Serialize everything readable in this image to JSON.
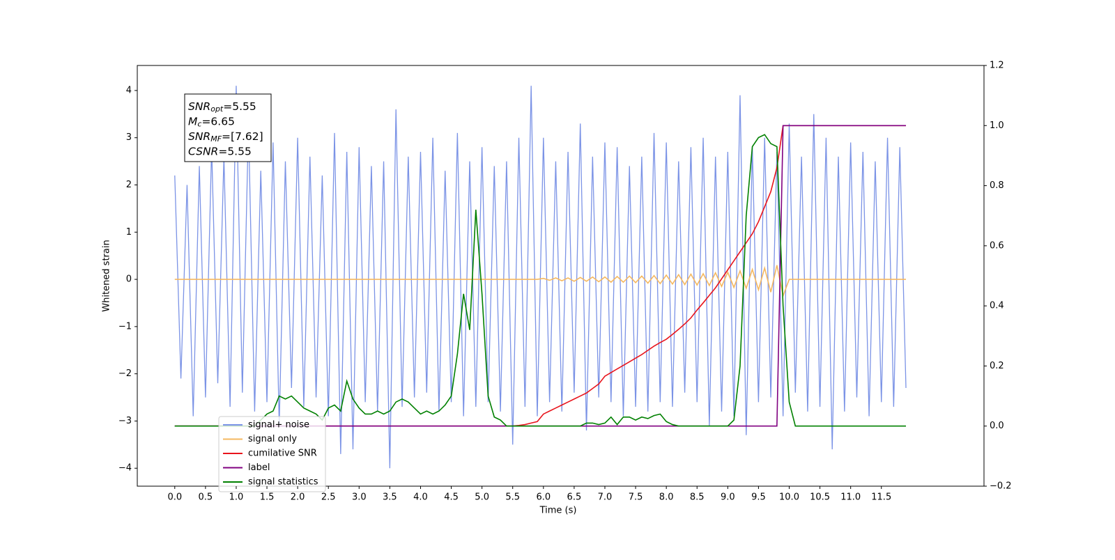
{
  "chart_data": {
    "type": "line",
    "xlabel": "Time (s)",
    "ylabel": "Whitened strain",
    "xlim": [
      -0.61,
      13.17
    ],
    "ylim": [
      -4.38,
      4.53
    ],
    "y2lim": [
      -0.2,
      1.2
    ],
    "xticks": [
      {
        "value": 0,
        "label": "0.0"
      },
      0.5,
      {
        "value": 1,
        "label": "1.0"
      },
      1.5,
      {
        "value": 2,
        "label": "2.0"
      },
      2.5,
      {
        "value": 3,
        "label": "3.0"
      },
      3.5,
      {
        "value": 4,
        "label": "4.0"
      },
      4.5,
      {
        "value": 5,
        "label": "5.0"
      },
      5.5,
      {
        "value": 6,
        "label": "6.0"
      },
      6.5,
      {
        "value": 7,
        "label": "7.0"
      },
      7.5,
      {
        "value": 8,
        "label": "8.0"
      },
      8.5,
      {
        "value": 9,
        "label": "9.0"
      },
      9.5,
      {
        "value": 10,
        "label": "10.0"
      },
      10.5,
      {
        "value": 11,
        "label": "11.0"
      },
      11.5
    ],
    "yticks": [
      {
        "value": -4,
        "label": "−4"
      },
      {
        "value": -3,
        "label": "−3"
      },
      {
        "value": -2,
        "label": "−2"
      },
      {
        "value": -1,
        "label": "−1"
      },
      0,
      1,
      2,
      3,
      4
    ],
    "y2ticks": [
      {
        "value": -0.2,
        "label": "−0.2"
      },
      {
        "value": 0,
        "label": "0.0"
      },
      0.2,
      0.4,
      0.6,
      0.8,
      {
        "value": 1,
        "label": "1.0"
      },
      1.2
    ],
    "legend": "lower left",
    "annotation": [
      {
        "symbol": "SNR",
        "subscript": "opt",
        "text": "=5.55"
      },
      {
        "symbol": "M",
        "subscript": "c",
        "text": "=6.65"
      },
      {
        "symbol": "SNR",
        "subscript": "MF",
        "text": "=[7.62]"
      },
      {
        "symbol": "CSNR",
        "subscript": "",
        "text": "=5.55"
      }
    ],
    "x": [
      0.0,
      0.1,
      0.2,
      0.3,
      0.4,
      0.5,
      0.6,
      0.7,
      0.8,
      0.9,
      1.0,
      1.1,
      1.2,
      1.3,
      1.4,
      1.5,
      1.6,
      1.7,
      1.8,
      1.9,
      2.0,
      2.1,
      2.2,
      2.3,
      2.4,
      2.5,
      2.6,
      2.7,
      2.8,
      2.9,
      3.0,
      3.1,
      3.2,
      3.3,
      3.4,
      3.5,
      3.6,
      3.7,
      3.8,
      3.9,
      4.0,
      4.1,
      4.2,
      4.3,
      4.4,
      4.5,
      4.6,
      4.7,
      4.8,
      4.9,
      5.0,
      5.1,
      5.2,
      5.3,
      5.4,
      5.5,
      5.6,
      5.7,
      5.8,
      5.9,
      6.0,
      6.1,
      6.2,
      6.3,
      6.4,
      6.5,
      6.6,
      6.7,
      6.8,
      6.9,
      7.0,
      7.1,
      7.2,
      7.3,
      7.4,
      7.5,
      7.6,
      7.7,
      7.8,
      7.9,
      8.0,
      8.1,
      8.2,
      8.3,
      8.4,
      8.5,
      8.6,
      8.7,
      8.8,
      8.9,
      9.0,
      9.1,
      9.2,
      9.3,
      9.4,
      9.5,
      9.6,
      9.7,
      9.8,
      9.9,
      10.0,
      10.1,
      10.2,
      10.3,
      10.4,
      10.5,
      10.6,
      10.7,
      10.8,
      10.9,
      11.0,
      11.1,
      11.2,
      11.3,
      11.4,
      11.5,
      11.6,
      11.7,
      11.8,
      11.9
    ],
    "series": [
      {
        "name": "signal+ noise",
        "color": "#7b93e6",
        "axis": "y",
        "values": [
          2.2,
          -2.1,
          2.0,
          -2.9,
          2.4,
          -2.5,
          2.8,
          -2.2,
          2.6,
          -2.7,
          4.1,
          -2.4,
          3.3,
          -2.8,
          2.3,
          -2.6,
          2.9,
          -3.1,
          2.5,
          -2.3,
          3.0,
          -2.7,
          2.6,
          -2.5,
          2.2,
          -2.9,
          3.1,
          -3.7,
          2.7,
          -3.6,
          2.8,
          -2.6,
          2.4,
          -2.8,
          2.5,
          -4.0,
          3.6,
          -2.7,
          2.6,
          -2.5,
          2.7,
          -2.4,
          3.0,
          -2.8,
          2.3,
          -2.6,
          3.1,
          -2.9,
          2.5,
          -2.7,
          2.8,
          -2.6,
          2.4,
          -2.8,
          2.5,
          -3.5,
          3.0,
          -2.7,
          4.1,
          -2.9,
          3.0,
          -2.6,
          2.5,
          -2.8,
          2.7,
          -2.4,
          3.3,
          -3.2,
          2.6,
          -2.5,
          2.9,
          -2.6,
          2.8,
          -2.9,
          2.4,
          -2.7,
          2.6,
          -2.8,
          3.1,
          -2.6,
          2.9,
          -2.7,
          2.5,
          -2.4,
          2.8,
          -2.6,
          3.0,
          -3.1,
          2.6,
          -2.8,
          2.7,
          -2.9,
          3.9,
          -3.3,
          2.8,
          -2.6,
          3.0,
          -2.5,
          2.7,
          -2.9,
          3.3,
          -2.4,
          2.6,
          -2.8,
          3.5,
          -2.7,
          3.0,
          -3.6,
          2.6,
          -2.8,
          2.9,
          -2.5,
          2.7,
          -2.9,
          2.5,
          -2.6,
          3.0,
          -2.7,
          2.8,
          -2.3
        ]
      },
      {
        "name": "signal only",
        "color": "#f5b860",
        "axis": "y",
        "values": [
          0,
          0,
          0,
          0,
          0,
          0,
          0,
          0,
          0,
          0,
          0,
          0,
          0,
          0,
          0,
          0,
          0,
          0,
          0,
          0,
          0,
          0,
          0,
          0,
          0,
          0,
          0,
          0,
          0,
          0,
          0,
          0,
          0,
          0,
          0,
          0,
          0,
          0,
          0,
          0,
          0,
          0,
          0,
          0,
          0,
          0,
          0,
          0,
          0,
          0,
          0,
          0,
          0,
          0,
          0,
          0,
          0,
          0,
          0,
          0,
          0.02,
          -0.02,
          0.03,
          -0.03,
          0.03,
          -0.04,
          0.04,
          -0.04,
          0.05,
          -0.05,
          0.05,
          -0.06,
          0.06,
          -0.06,
          0.07,
          -0.07,
          0.07,
          -0.08,
          0.08,
          -0.09,
          0.09,
          -0.1,
          0.1,
          -0.11,
          0.11,
          -0.12,
          0.12,
          -0.13,
          0.14,
          -0.15,
          0.15,
          -0.17,
          0.18,
          -0.19,
          0.21,
          -0.22,
          0.24,
          -0.27,
          0.3,
          -0.35,
          0,
          0,
          0,
          0,
          0,
          0,
          0,
          0,
          0,
          0,
          0,
          0,
          0,
          0,
          0,
          0,
          0,
          0,
          0,
          0
        ]
      },
      {
        "name": "cumilative SNR",
        "color": "#e8141c",
        "axis": "y2",
        "values": [
          0,
          0,
          0,
          0,
          0,
          0,
          0,
          0,
          0,
          0,
          0,
          0,
          0,
          0,
          0,
          0,
          0,
          0,
          0,
          0,
          0,
          0,
          0,
          0,
          0,
          0,
          0,
          0,
          0,
          0,
          0,
          0,
          0,
          0,
          0,
          0,
          0,
          0,
          0,
          0,
          0,
          0,
          0,
          0,
          0,
          0,
          0,
          0,
          0,
          0,
          0,
          0,
          0,
          0,
          0,
          0,
          0.002,
          0.005,
          0.01,
          0.015,
          0.04,
          0.05,
          0.06,
          0.07,
          0.08,
          0.09,
          0.1,
          0.11,
          0.125,
          0.14,
          0.166,
          0.178,
          0.19,
          0.202,
          0.214,
          0.226,
          0.238,
          0.252,
          0.266,
          0.278,
          0.289,
          0.305,
          0.322,
          0.34,
          0.36,
          0.386,
          0.41,
          0.435,
          0.46,
          0.49,
          0.52,
          0.55,
          0.58,
          0.61,
          0.64,
          0.68,
          0.73,
          0.78,
          0.86,
          1.0,
          1.0,
          1.0,
          1.0,
          1.0,
          1.0,
          1.0,
          1.0,
          1.0,
          1.0,
          1.0,
          1.0,
          1.0,
          1.0,
          1.0,
          1.0,
          1.0,
          1.0,
          1.0,
          1.0,
          1.0
        ]
      },
      {
        "name": "label",
        "color": "purple",
        "axis": "y2",
        "values": [
          0,
          0,
          0,
          0,
          0,
          0,
          0,
          0,
          0,
          0,
          0,
          0,
          0,
          0,
          0,
          0,
          0,
          0,
          0,
          0,
          0,
          0,
          0,
          0,
          0,
          0,
          0,
          0,
          0,
          0,
          0,
          0,
          0,
          0,
          0,
          0,
          0,
          0,
          0,
          0,
          0,
          0,
          0,
          0,
          0,
          0,
          0,
          0,
          0,
          0,
          0,
          0,
          0,
          0,
          0,
          0,
          0,
          0,
          0,
          0,
          0,
          0,
          0,
          0,
          0,
          0,
          0,
          0,
          0,
          0,
          0,
          0,
          0,
          0,
          0,
          0,
          0,
          0,
          0,
          0,
          0,
          0,
          0,
          0,
          0,
          0,
          0,
          0,
          0,
          0,
          0,
          0,
          0,
          0,
          0,
          0,
          0,
          0,
          0,
          1,
          1,
          1,
          1,
          1,
          1,
          1,
          1,
          1,
          1,
          1,
          1,
          1,
          1,
          1,
          1,
          1,
          1,
          1,
          1,
          1
        ]
      },
      {
        "name": "signal statistics",
        "color": "green",
        "axis": "y2",
        "values": [
          0,
          0,
          0,
          0,
          0,
          0,
          0,
          0,
          0,
          0,
          0,
          0,
          0,
          0,
          0.02,
          0.04,
          0.05,
          0.1,
          0.09,
          0.1,
          0.08,
          0.06,
          0.05,
          0.04,
          0.02,
          0.06,
          0.07,
          0.05,
          0.15,
          0.09,
          0.06,
          0.04,
          0.04,
          0.05,
          0.04,
          0.05,
          0.08,
          0.09,
          0.08,
          0.06,
          0.04,
          0.05,
          0.04,
          0.05,
          0.07,
          0.1,
          0.24,
          0.44,
          0.32,
          0.72,
          0.44,
          0.1,
          0.03,
          0.02,
          0,
          0,
          0,
          0,
          0,
          0,
          0,
          0,
          0,
          0,
          0,
          0,
          0,
          0.01,
          0.01,
          0.005,
          0.01,
          0.03,
          0.005,
          0.03,
          0.03,
          0.02,
          0.03,
          0.025,
          0.035,
          0.04,
          0.015,
          0.005,
          0,
          0,
          0,
          0,
          0,
          0,
          0,
          0,
          0,
          0.02,
          0.2,
          0.7,
          0.93,
          0.96,
          0.97,
          0.94,
          0.93,
          0.4,
          0.08,
          0,
          0,
          0,
          0,
          0,
          0,
          0,
          0,
          0,
          0,
          0,
          0,
          0,
          0,
          0,
          0,
          0,
          0,
          0
        ]
      }
    ]
  }
}
